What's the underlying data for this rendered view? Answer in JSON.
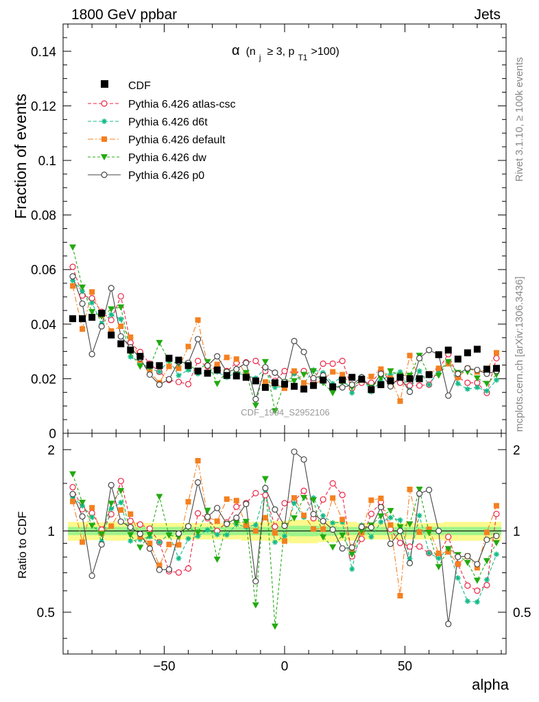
{
  "header": {
    "energy_label": "1800 GeV ppbar",
    "process_label": "Jets",
    "rivet_label": "Rivet 3.1.10, ≥ 100k events",
    "mcplots_label": "mcplots.cern.ch [arXiv:1306.3436]",
    "watermark": "CDF_1994_S2952106"
  },
  "chart_data": {
    "type": "scatter",
    "title": "α (n_j ≥ 3, p_T1 >100)",
    "title_parts": {
      "alpha": "α",
      "open": "(n",
      "sub_j": "j",
      "geq": "≥ 3, p",
      "sub_t1": "T1",
      "close": ">100)"
    },
    "xlabel": "alpha",
    "ylabel": "Fraction of events",
    "ratio_ylabel": "Ratio to CDF",
    "xlim": [
      -92,
      92
    ],
    "ylim": [
      0,
      0.15
    ],
    "ratio_ylim": [
      0.35,
      2.3
    ],
    "xticks": [
      -50,
      0,
      50
    ],
    "xtick_labels": [
      "−50",
      "0",
      "50"
    ],
    "yticks": [
      0.02,
      0.04,
      0.06,
      0.08,
      0.1,
      0.12,
      0.14
    ],
    "ytick_labels": [
      "0.02",
      "0.04",
      "0.06",
      "0.08",
      "0.1",
      "0.12",
      "0.14"
    ],
    "y_zero_label": "0",
    "ratio_yticks": [
      0.5,
      1,
      2
    ],
    "ratio_ytick_labels": [
      "0.5",
      "1",
      "2"
    ],
    "x": [
      -88,
      -84,
      -80,
      -76,
      -72,
      -68,
      -64,
      -60,
      -56,
      -52,
      -48,
      -44,
      -40,
      -36,
      -32,
      -28,
      -24,
      -20,
      -16,
      -12,
      -8,
      -4,
      0,
      4,
      8,
      12,
      16,
      20,
      24,
      28,
      32,
      36,
      40,
      44,
      48,
      52,
      56,
      60,
      64,
      68,
      72,
      76,
      80,
      84,
      88
    ],
    "data_values": [
      0.042,
      0.042,
      0.0425,
      0.044,
      0.036,
      0.0328,
      0.0305,
      0.0282,
      0.025,
      0.0248,
      0.0275,
      0.0268,
      0.0248,
      0.0228,
      0.022,
      0.0232,
      0.0212,
      0.021,
      0.0205,
      0.0192,
      0.0168,
      0.0185,
      0.018,
      0.0172,
      0.0162,
      0.0175,
      0.0195,
      0.017,
      0.0195,
      0.0205,
      0.0198,
      0.016,
      0.0178,
      0.0192,
      0.0205,
      0.02,
      0.02,
      0.0215,
      0.0288,
      0.0305,
      0.0272,
      0.0295,
      0.0308,
      0.0235,
      0.0238
    ],
    "band_outer": [
      0.08,
      0.08,
      0.075,
      0.075,
      0.08,
      0.08,
      0.075,
      0.075,
      0.07,
      0.07,
      0.07,
      0.07,
      0.07,
      0.07,
      0.07,
      0.07,
      0.07,
      0.07,
      0.08,
      0.08,
      0.08,
      0.09,
      0.09,
      0.1,
      0.1,
      0.1,
      0.09,
      0.09,
      0.08,
      0.08,
      0.07,
      0.07,
      0.07,
      0.07,
      0.07,
      0.07,
      0.07,
      0.07,
      0.07,
      0.08,
      0.08,
      0.08,
      0.08,
      0.08,
      0.08
    ],
    "band_inner": [
      0.035,
      0.035,
      0.035,
      0.035,
      0.035,
      0.035,
      0.035,
      0.035,
      0.035,
      0.035,
      0.035,
      0.035,
      0.035,
      0.035,
      0.035,
      0.035,
      0.035,
      0.035,
      0.035,
      0.035,
      0.035,
      0.04,
      0.04,
      0.045,
      0.045,
      0.045,
      0.04,
      0.04,
      0.035,
      0.035,
      0.035,
      0.035,
      0.035,
      0.035,
      0.035,
      0.035,
      0.035,
      0.035,
      0.035,
      0.035,
      0.035,
      0.035,
      0.035,
      0.035,
      0.035
    ],
    "series": [
      {
        "name": "Pythia 6.426 atlas-csc",
        "color": "#ee2244",
        "marker": "circle-open",
        "dash": "5,3",
        "values": [
          0.061,
          0.0505,
          0.0495,
          0.0445,
          0.0415,
          0.0502,
          0.0332,
          0.0298,
          0.0255,
          0.0225,
          0.0195,
          0.0188,
          0.018,
          0.0265,
          0.0245,
          0.0232,
          0.0228,
          0.0258,
          0.026,
          0.0265,
          0.0228,
          0.0192,
          0.0228,
          0.0222,
          0.0228,
          0.0195,
          0.0255,
          0.0255,
          0.0265,
          0.0165,
          0.0185,
          0.0185,
          0.0228,
          0.0195,
          0.0185,
          0.0175,
          0.0175,
          0.0178,
          0.0235,
          0.029,
          0.0205,
          0.0185,
          0.0185,
          0.0148,
          0.0275
        ]
      },
      {
        "name": "Pythia 6.426 d6t",
        "color": "#11bb88",
        "marker": "star",
        "dash": "5,3",
        "values": [
          0.056,
          0.052,
          0.0478,
          0.0402,
          0.0435,
          0.0418,
          0.028,
          0.0262,
          0.0238,
          0.0225,
          0.0268,
          0.0212,
          0.0232,
          0.0218,
          0.0222,
          0.0225,
          0.0205,
          0.0222,
          0.0212,
          0.0202,
          0.0238,
          0.0168,
          0.0172,
          0.0218,
          0.0182,
          0.0232,
          0.0222,
          0.0182,
          0.021,
          0.0148,
          0.0208,
          0.0152,
          0.0192,
          0.0215,
          0.0225,
          0.0158,
          0.0228,
          0.0178,
          0.0228,
          0.0262,
          0.0182,
          0.0162,
          0.0168,
          0.0155,
          0.0195
        ]
      },
      {
        "name": "Pythia 6.426 default",
        "color": "#f48020",
        "marker": "square",
        "dash": "8,3,2,3",
        "values": [
          0.054,
          0.0382,
          0.0518,
          0.0432,
          0.0375,
          0.0392,
          0.0352,
          0.0268,
          0.0225,
          0.0185,
          0.0245,
          0.0238,
          0.0318,
          0.0415,
          0.0248,
          0.0252,
          0.0278,
          0.0272,
          0.0215,
          0.0192,
          0.0188,
          0.0182,
          0.0165,
          0.0228,
          0.0185,
          0.0178,
          0.0198,
          0.0225,
          0.0215,
          0.0175,
          0.0195,
          0.0208,
          0.0235,
          0.0202,
          0.0118,
          0.0285,
          0.0198,
          0.0218,
          0.0238,
          0.0255,
          0.0205,
          0.0238,
          0.0225,
          0.0232,
          0.0295
        ]
      },
      {
        "name": "Pythia 6.426 dw",
        "color": "#22aa11",
        "marker": "triangle-down",
        "dash": "4,3",
        "values": [
          0.0682,
          0.0535,
          0.0445,
          0.0428,
          0.0455,
          0.0462,
          0.0295,
          0.0245,
          0.0242,
          0.0332,
          0.0265,
          0.0255,
          0.0255,
          0.0225,
          0.0262,
          0.0182,
          0.0225,
          0.0225,
          0.0222,
          0.0102,
          0.0262,
          0.0082,
          0.0188,
          0.0192,
          0.0215,
          0.0228,
          0.0185,
          0.0148,
          0.0188,
          0.0168,
          0.0198,
          0.0168,
          0.0202,
          0.0228,
          0.0212,
          0.0212,
          0.0285,
          0.0212,
          0.0212,
          0.0262,
          0.0222,
          0.0225,
          0.0202,
          0.0182,
          0.0215
        ]
      },
      {
        "name": "Pythia 6.426 p0",
        "color": "#444444",
        "marker": "circle-open",
        "dash": "",
        "values": [
          0.0575,
          0.0475,
          0.029,
          0.0392,
          0.0532,
          0.0355,
          0.0315,
          0.0275,
          0.0215,
          0.0178,
          0.0198,
          0.0262,
          0.0258,
          0.0345,
          0.0248,
          0.0282,
          0.0225,
          0.0235,
          0.0258,
          0.0125,
          0.0242,
          0.0222,
          0.0188,
          0.0338,
          0.0298,
          0.0202,
          0.0212,
          0.0172,
          0.0168,
          0.0178,
          0.0205,
          0.0165,
          0.0218,
          0.0172,
          0.0205,
          0.0152,
          0.0275,
          0.0305,
          0.0288,
          0.0138,
          0.0218,
          0.0238,
          0.0232,
          0.0218,
          0.0228
        ]
      }
    ]
  }
}
